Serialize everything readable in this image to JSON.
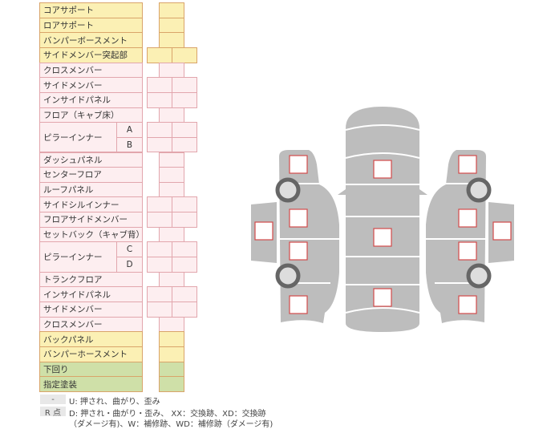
{
  "rows": [
    {
      "label": "コアサポート",
      "sub": "",
      "color": "yellow",
      "cells": 1
    },
    {
      "label": "ロアサポート",
      "sub": "",
      "color": "yellow",
      "cells": 1
    },
    {
      "label": "バンパーボースメント",
      "sub": "",
      "color": "yellow",
      "cells": 1
    },
    {
      "label": "サイドメンバー突起部",
      "sub": "",
      "color": "yellow",
      "cells": 2
    },
    {
      "label": "クロスメンバー",
      "sub": "",
      "color": "pink",
      "cells": 1
    },
    {
      "label": "サイドメンバー",
      "sub": "",
      "color": "pink",
      "cells": 2
    },
    {
      "label": "インサイドパネル",
      "sub": "",
      "color": "pink",
      "cells": 2
    },
    {
      "label": "フロア（キャブ床）",
      "sub": "",
      "color": "pink",
      "cells": 1
    },
    {
      "label": "ピラーインナー",
      "sub": "A",
      "color": "pink",
      "cells": 2
    },
    {
      "label": "",
      "sub": "B",
      "color": "pink",
      "cells": 2
    },
    {
      "label": "ダッシュパネル",
      "sub": "",
      "color": "pink",
      "cells": 1
    },
    {
      "label": "センターフロア",
      "sub": "",
      "color": "pink",
      "cells": 1
    },
    {
      "label": "ルーフパネル",
      "sub": "",
      "color": "pink",
      "cells": 1
    },
    {
      "label": "サイドシルインナー",
      "sub": "",
      "color": "pink",
      "cells": 2
    },
    {
      "label": "フロアサイドメンバー",
      "sub": "",
      "color": "pink",
      "cells": 2
    },
    {
      "label": "セットバック（キャブ背）",
      "sub": "",
      "color": "pink",
      "cells": 1
    },
    {
      "label": "ピラーインナー",
      "sub": "C",
      "color": "pink",
      "cells": 2
    },
    {
      "label": "",
      "sub": "D",
      "color": "pink",
      "cells": 2
    },
    {
      "label": "トランクフロア",
      "sub": "",
      "color": "pink",
      "cells": 1
    },
    {
      "label": "インサイドパネル",
      "sub": "",
      "color": "pink",
      "cells": 2
    },
    {
      "label": "サイドメンバー",
      "sub": "",
      "color": "pink",
      "cells": 2
    },
    {
      "label": "クロスメンバー",
      "sub": "",
      "color": "pink",
      "cells": 1
    },
    {
      "label": "バックパネル",
      "sub": "",
      "color": "yellow",
      "cells": 1
    },
    {
      "label": "バンパーホースメント",
      "sub": "",
      "color": "yellow",
      "cells": 1
    },
    {
      "label": "下回り",
      "sub": "",
      "color": "green",
      "cells": 1
    },
    {
      "label": "指定塗装",
      "sub": "",
      "color": "green",
      "cells": 1
    }
  ],
  "legend": {
    "dash_key": "-",
    "dash_text": "U: 押され、曲がり、歪み",
    "r_key": "R 点",
    "r_text_1": "D: 押され・曲がり・歪み、 XX：交換跡、XD：交換跡",
    "r_text_2": "（ダメージ有)、W：補修跡、WD：補修跡（ダメージ有)"
  },
  "colors": {
    "body": "#bdbdbd",
    "marker": "#d24a4a",
    "tire": "#666666"
  }
}
